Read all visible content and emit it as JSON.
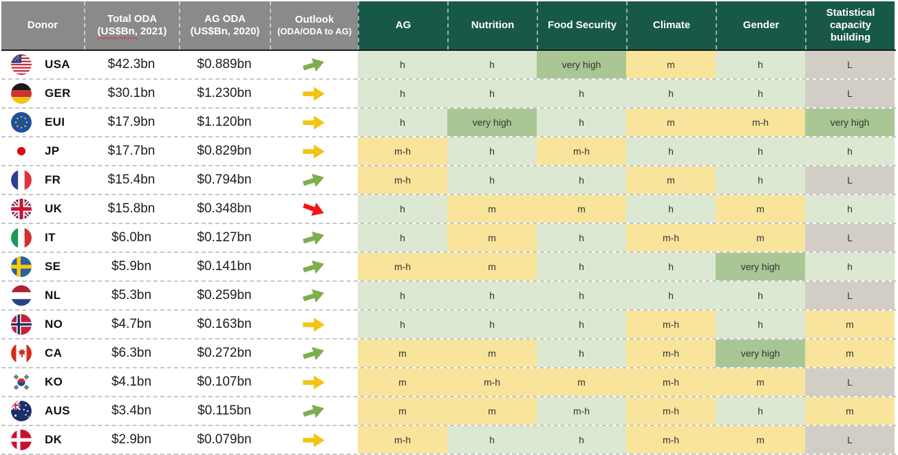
{
  "header": {
    "donor": "Donor",
    "total_oda": {
      "line1": "Total ODA",
      "line2_wavy": "(US$Bn,",
      "line2_rest": " 2021)"
    },
    "ag_oda": {
      "line1": "AG ODA",
      "line2": "(US$Bn, 2020)"
    },
    "outlook": {
      "line1": "Outlook",
      "line2": "(ODA/ODA to AG)"
    },
    "green_cols": [
      "AG",
      "Nutrition",
      "Food Security",
      "Climate",
      "Gender",
      "Statistical capacity building"
    ]
  },
  "colors": {
    "header_gray": "#8a8a8a",
    "header_green": "#175849",
    "rating_light_green": "#dce8d1",
    "rating_very_high_green": "#a9c795",
    "rating_yellow": "#f9e49b",
    "rating_gray": "#d2cec6",
    "arrow_up_green": "#7daf4f",
    "arrow_flat_yellow": "#f4c212",
    "arrow_down_red": "#f41414"
  },
  "chart_data": {
    "type": "table",
    "columns": [
      "Donor",
      "Total ODA (US$Bn, 2021)",
      "AG ODA (US$Bn, 2020)",
      "Outlook (ODA/ODA to AG)",
      "AG",
      "Nutrition",
      "Food Security",
      "Climate",
      "Gender",
      "Statistical capacity building"
    ],
    "rating_values_legend": {
      "lg": "light-green",
      "mg": "medium-green (very high)",
      "y": "yellow",
      "gray": "gray (L)"
    },
    "rows": [
      {
        "code": "USA",
        "flag": "us",
        "total_oda": "$42.3bn",
        "ag_oda": "$0.889bn",
        "outlook": "up",
        "ratings": [
          {
            "v": "h",
            "c": "lg"
          },
          {
            "v": "h",
            "c": "lg"
          },
          {
            "v": "very high",
            "c": "mg"
          },
          {
            "v": "m",
            "c": "y"
          },
          {
            "v": "h",
            "c": "lg"
          },
          {
            "v": "L",
            "c": "gray"
          }
        ]
      },
      {
        "code": "GER",
        "flag": "de",
        "total_oda": "$30.1bn",
        "ag_oda": "$1.230bn",
        "outlook": "flat",
        "ratings": [
          {
            "v": "h",
            "c": "lg"
          },
          {
            "v": "h",
            "c": "lg"
          },
          {
            "v": "h",
            "c": "lg"
          },
          {
            "v": "h",
            "c": "lg"
          },
          {
            "v": "h",
            "c": "lg"
          },
          {
            "v": "L",
            "c": "gray"
          }
        ]
      },
      {
        "code": "EUI",
        "flag": "eu",
        "total_oda": "$17.9bn",
        "ag_oda": "$1.120bn",
        "outlook": "flat",
        "ratings": [
          {
            "v": "h",
            "c": "lg"
          },
          {
            "v": "very high",
            "c": "mg"
          },
          {
            "v": "h",
            "c": "lg"
          },
          {
            "v": "m",
            "c": "y"
          },
          {
            "v": "m-h",
            "c": "y"
          },
          {
            "v": "very high",
            "c": "mg"
          }
        ]
      },
      {
        "code": "JP",
        "flag": "jp",
        "total_oda": "$17.7bn",
        "ag_oda": "$0.829bn",
        "outlook": "flat",
        "ratings": [
          {
            "v": "m-h",
            "c": "y"
          },
          {
            "v": "h",
            "c": "lg"
          },
          {
            "v": "m-h",
            "c": "y"
          },
          {
            "v": "h",
            "c": "lg"
          },
          {
            "v": "h",
            "c": "lg"
          },
          {
            "v": "h",
            "c": "lg"
          }
        ]
      },
      {
        "code": "FR",
        "flag": "fr",
        "total_oda": "$15.4bn",
        "ag_oda": "$0.794bn",
        "outlook": "up",
        "ratings": [
          {
            "v": "m-h",
            "c": "y"
          },
          {
            "v": "h",
            "c": "lg"
          },
          {
            "v": "h",
            "c": "lg"
          },
          {
            "v": "m",
            "c": "y"
          },
          {
            "v": "h",
            "c": "lg"
          },
          {
            "v": "L",
            "c": "gray"
          }
        ]
      },
      {
        "code": "UK",
        "flag": "uk",
        "total_oda": "$15.8bn",
        "ag_oda": "$0.348bn",
        "outlook": "down",
        "ratings": [
          {
            "v": "h",
            "c": "lg"
          },
          {
            "v": "m",
            "c": "y"
          },
          {
            "v": "m",
            "c": "y"
          },
          {
            "v": "h",
            "c": "lg"
          },
          {
            "v": "m",
            "c": "y"
          },
          {
            "v": "h",
            "c": "lg"
          }
        ]
      },
      {
        "code": "IT",
        "flag": "it",
        "total_oda": "$6.0bn",
        "ag_oda": "$0.127bn",
        "outlook": "up",
        "ratings": [
          {
            "v": "h",
            "c": "lg"
          },
          {
            "v": "m",
            "c": "y"
          },
          {
            "v": "h",
            "c": "lg"
          },
          {
            "v": "m-h",
            "c": "y"
          },
          {
            "v": "m",
            "c": "y"
          },
          {
            "v": "L",
            "c": "gray"
          }
        ]
      },
      {
        "code": "SE",
        "flag": "se",
        "total_oda": "$5.9bn",
        "ag_oda": "$0.141bn",
        "outlook": "up",
        "ratings": [
          {
            "v": "m-h",
            "c": "y"
          },
          {
            "v": "m",
            "c": "y"
          },
          {
            "v": "h",
            "c": "lg"
          },
          {
            "v": "h",
            "c": "lg"
          },
          {
            "v": "very high",
            "c": "mg"
          },
          {
            "v": "h",
            "c": "lg"
          }
        ]
      },
      {
        "code": "NL",
        "flag": "nl",
        "total_oda": "$5.3bn",
        "ag_oda": "$0.259bn",
        "outlook": "up",
        "ratings": [
          {
            "v": "h",
            "c": "lg"
          },
          {
            "v": "h",
            "c": "lg"
          },
          {
            "v": "h",
            "c": "lg"
          },
          {
            "v": "h",
            "c": "lg"
          },
          {
            "v": "h",
            "c": "lg"
          },
          {
            "v": "L",
            "c": "gray"
          }
        ]
      },
      {
        "code": "NO",
        "flag": "no",
        "total_oda": "$4.7bn",
        "ag_oda": "$0.163bn",
        "outlook": "flat",
        "ratings": [
          {
            "v": "h",
            "c": "lg"
          },
          {
            "v": "h",
            "c": "lg"
          },
          {
            "v": "h",
            "c": "lg"
          },
          {
            "v": "m-h",
            "c": "y"
          },
          {
            "v": "h",
            "c": "lg"
          },
          {
            "v": "m",
            "c": "y"
          }
        ]
      },
      {
        "code": "CA",
        "flag": "ca",
        "total_oda": "$6.3bn",
        "ag_oda": "$0.272bn",
        "outlook": "up",
        "ratings": [
          {
            "v": "m",
            "c": "y"
          },
          {
            "v": "m",
            "c": "y"
          },
          {
            "v": "h",
            "c": "lg"
          },
          {
            "v": "m-h",
            "c": "y"
          },
          {
            "v": "very high",
            "c": "mg"
          },
          {
            "v": "m",
            "c": "y"
          }
        ]
      },
      {
        "code": "KO",
        "flag": "kr",
        "total_oda": "$4.1bn",
        "ag_oda": "$0.107bn",
        "outlook": "flat",
        "ratings": [
          {
            "v": "m",
            "c": "y"
          },
          {
            "v": "m-h",
            "c": "y"
          },
          {
            "v": "m",
            "c": "y"
          },
          {
            "v": "m-h",
            "c": "y"
          },
          {
            "v": "m",
            "c": "y"
          },
          {
            "v": "L",
            "c": "gray"
          }
        ]
      },
      {
        "code": "AUS",
        "flag": "au",
        "total_oda": "$3.4bn",
        "ag_oda": "$0.115bn",
        "outlook": "up",
        "ratings": [
          {
            "v": "m",
            "c": "y"
          },
          {
            "v": "m",
            "c": "y"
          },
          {
            "v": "m-h",
            "c": "lg"
          },
          {
            "v": "m-h",
            "c": "y"
          },
          {
            "v": "h",
            "c": "lg"
          },
          {
            "v": "m",
            "c": "y"
          }
        ]
      },
      {
        "code": "DK",
        "flag": "dk",
        "total_oda": "$2.9bn",
        "ag_oda": "$0.079bn",
        "outlook": "flat",
        "ratings": [
          {
            "v": "m-h",
            "c": "y"
          },
          {
            "v": "h",
            "c": "lg"
          },
          {
            "v": "h",
            "c": "lg"
          },
          {
            "v": "m-h",
            "c": "y"
          },
          {
            "v": "m",
            "c": "y"
          },
          {
            "v": "L",
            "c": "gray"
          }
        ]
      }
    ]
  }
}
